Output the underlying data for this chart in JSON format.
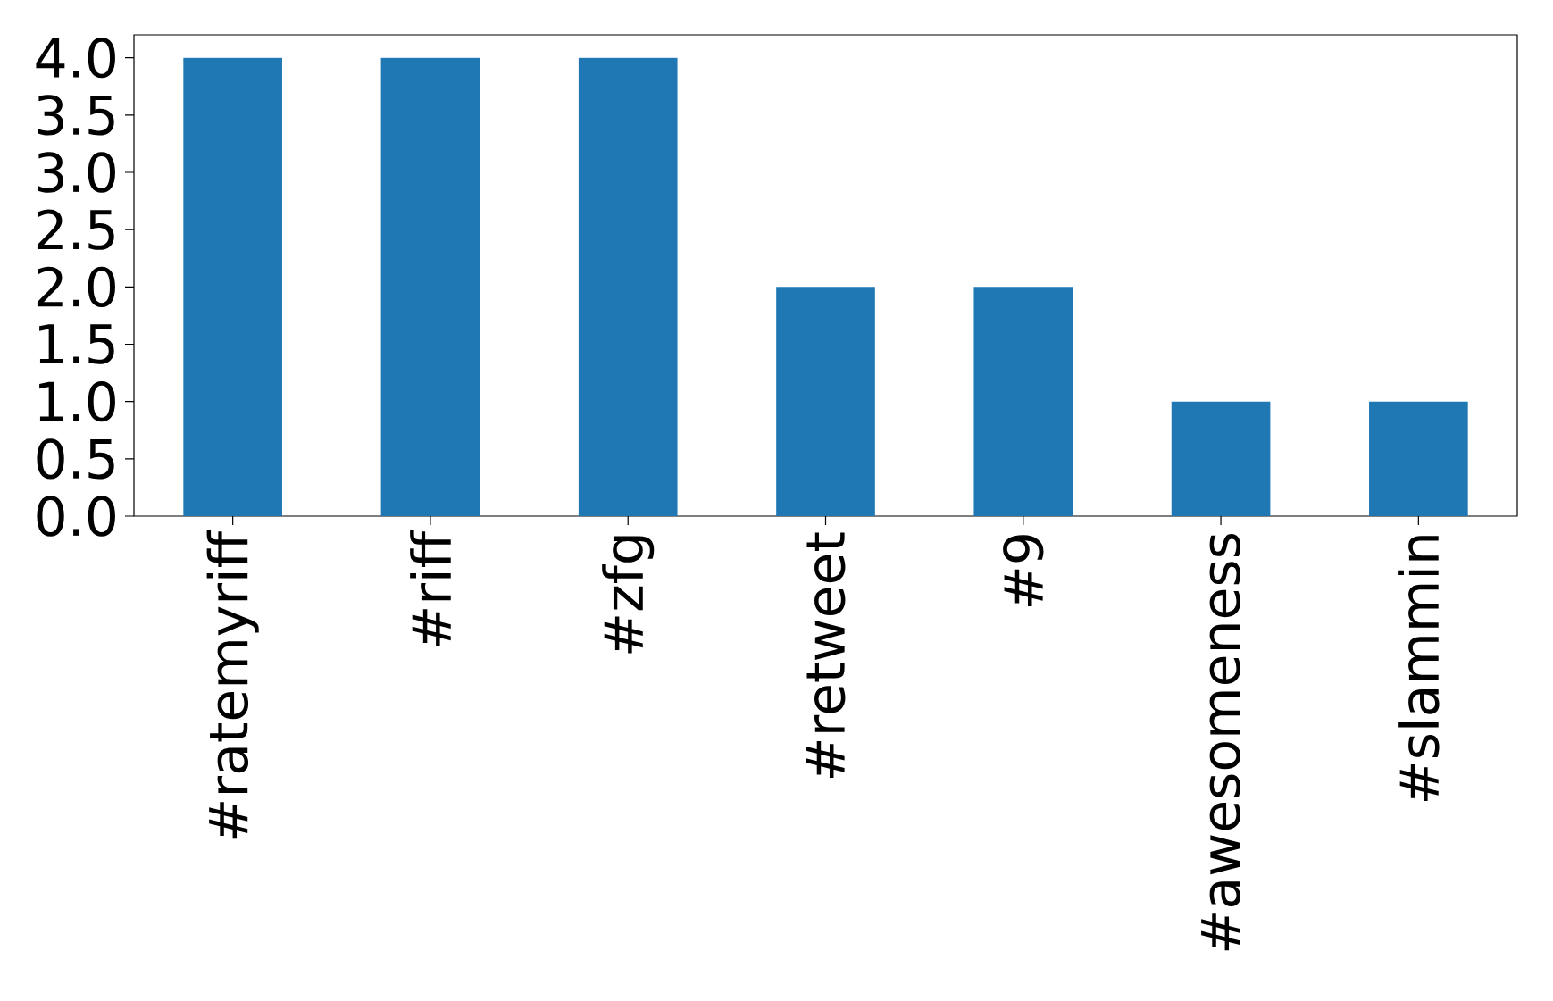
{
  "chart_data": {
    "type": "bar",
    "categories": [
      "#ratemyriff",
      "#riff",
      "#zfg",
      "#retweet",
      "#9",
      "#awesomeness",
      "#slammin"
    ],
    "values": [
      4,
      4,
      4,
      2,
      2,
      1,
      1
    ],
    "color": "#1f77b4",
    "ylim": [
      0,
      4.2
    ],
    "yticks": [
      {
        "value": 0,
        "label": "0.0"
      },
      {
        "value": 0.5,
        "label": "0.5"
      },
      {
        "value": 1,
        "label": "1.0"
      },
      {
        "value": 1.5,
        "label": "1.5"
      },
      {
        "value": 2,
        "label": "2.0"
      },
      {
        "value": 2.5,
        "label": "2.5"
      },
      {
        "value": 3,
        "label": "3.0"
      },
      {
        "value": 3.5,
        "label": "3.5"
      },
      {
        "value": 4,
        "label": "4.0"
      }
    ]
  }
}
